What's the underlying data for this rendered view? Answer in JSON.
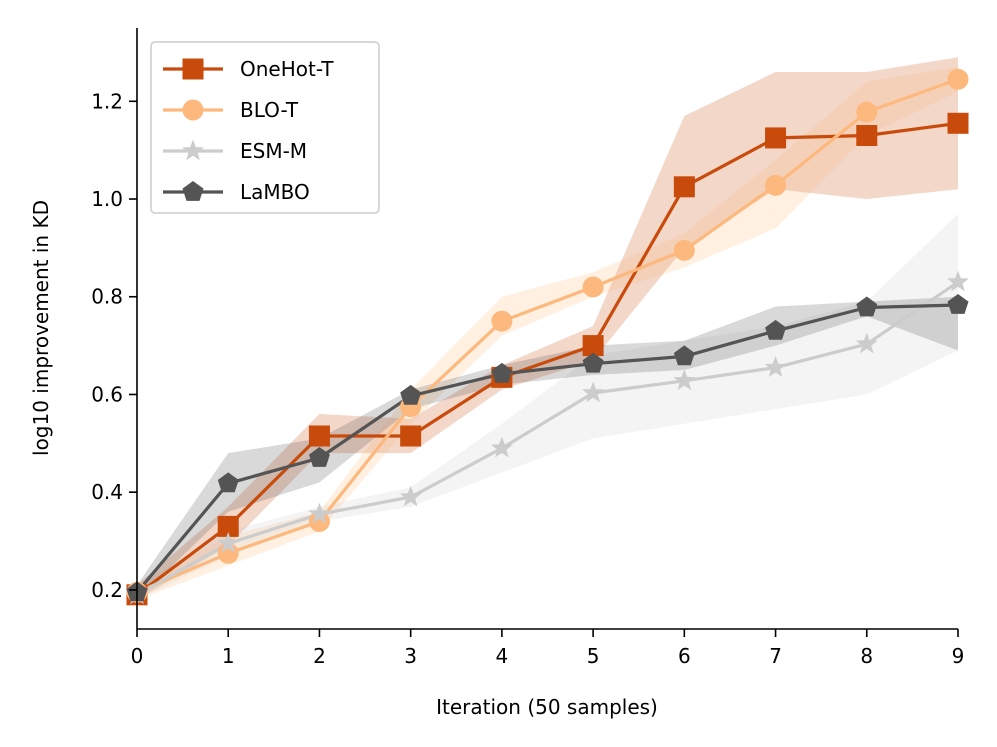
{
  "chart_data": {
    "type": "line",
    "xlabel": "Iteration (50 samples)",
    "ylabel": "log10 improvement in KD",
    "xlim": [
      0,
      9
    ],
    "ylim": [
      0.12,
      1.35
    ],
    "x_ticks": [
      0,
      1,
      2,
      3,
      4,
      5,
      6,
      7,
      8,
      9
    ],
    "y_ticks": [
      0.2,
      0.4,
      0.6,
      0.8,
      1.0,
      1.2
    ],
    "x_tick_labels": [
      "0",
      "1",
      "2",
      "3",
      "4",
      "5",
      "6",
      "7",
      "8",
      "9"
    ],
    "y_tick_labels": [
      "0.2",
      "0.4",
      "0.6",
      "0.8",
      "1.0",
      "1.2"
    ],
    "grid": false,
    "legend_position": "top-left",
    "x": [
      0,
      1,
      2,
      3,
      4,
      5,
      6,
      7,
      8,
      9
    ],
    "series": [
      {
        "name": "OneHot-T",
        "color": "#c84b0b",
        "marker": "square",
        "values": [
          0.19,
          0.33,
          0.515,
          0.515,
          0.635,
          0.7,
          1.025,
          1.125,
          1.13,
          1.155
        ],
        "lower": [
          0.18,
          0.29,
          0.48,
          0.48,
          0.61,
          0.67,
          0.9,
          1.02,
          1.0,
          1.02
        ],
        "upper": [
          0.21,
          0.37,
          0.56,
          0.55,
          0.66,
          0.74,
          1.17,
          1.26,
          1.26,
          1.29
        ]
      },
      {
        "name": "BLO-T",
        "color": "#fdb97d",
        "marker": "circle",
        "values": [
          0.195,
          0.275,
          0.34,
          0.575,
          0.75,
          0.82,
          0.895,
          1.028,
          1.178,
          1.245
        ],
        "lower": [
          0.18,
          0.25,
          0.32,
          0.54,
          0.72,
          0.8,
          0.86,
          0.94,
          1.13,
          1.22
        ],
        "upper": [
          0.21,
          0.31,
          0.36,
          0.61,
          0.8,
          0.85,
          0.93,
          1.08,
          1.24,
          1.27
        ]
      },
      {
        "name": "ESM-M",
        "color": "#cccccc",
        "marker": "star",
        "values": [
          0.19,
          0.295,
          0.355,
          0.39,
          0.49,
          0.603,
          0.628,
          0.655,
          0.703,
          0.83
        ],
        "lower": [
          0.18,
          0.27,
          0.34,
          0.37,
          0.44,
          0.51,
          0.54,
          0.57,
          0.6,
          0.69
        ],
        "upper": [
          0.21,
          0.32,
          0.37,
          0.41,
          0.54,
          0.68,
          0.71,
          0.74,
          0.79,
          0.97
        ]
      },
      {
        "name": "LaMBO",
        "color": "#545454",
        "marker": "pentagon",
        "values": [
          0.195,
          0.418,
          0.47,
          0.597,
          0.642,
          0.663,
          0.678,
          0.73,
          0.778,
          0.783
        ],
        "lower": [
          0.18,
          0.36,
          0.42,
          0.57,
          0.62,
          0.64,
          0.65,
          0.7,
          0.76,
          0.69
        ],
        "upper": [
          0.21,
          0.48,
          0.51,
          0.61,
          0.66,
          0.7,
          0.71,
          0.78,
          0.79,
          0.8
        ]
      }
    ]
  }
}
